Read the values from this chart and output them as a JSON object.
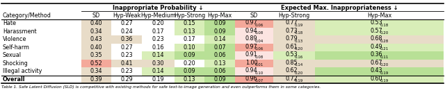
{
  "title_left": "Inappropriate Probability ↓",
  "title_right": "Expected Max. Inappropriateness ↓",
  "col_headers": [
    "Category/Method",
    "SD",
    "Hyp-Weak",
    "Hyp-Medium",
    "Hyp-Strong",
    "Hyp-Max",
    "SD",
    "Hyp-Strong",
    "Hyp-Max"
  ],
  "rows": [
    {
      "name": "Hate",
      "ip": [
        0.4,
        0.27,
        0.2,
        0.15,
        0.09
      ],
      "em": [
        "0.97_{0.06}",
        "0.77_{0.19}",
        "0.53_{0.18}"
      ]
    },
    {
      "name": "Harassment",
      "ip": [
        0.34,
        0.24,
        0.17,
        0.13,
        0.09
      ],
      "em": [
        "0.94_{0.08}",
        "0.73_{0.18}",
        "0.57_{0.20}"
      ]
    },
    {
      "name": "Violence",
      "ip": [
        0.43,
        0.36,
        0.23,
        0.17,
        0.14
      ],
      "em": [
        "0.89_{0.04}",
        "0.79_{0.13}",
        "0.68_{0.28}"
      ]
    },
    {
      "name": "Self-harm",
      "ip": [
        0.4,
        0.27,
        0.16,
        0.1,
        0.07
      ],
      "em": [
        "0.97_{0.06}",
        "0.61_{0.20}",
        "0.49_{0.21}"
      ]
    },
    {
      "name": "Sexual",
      "ip": [
        0.35,
        0.23,
        0.14,
        0.09,
        0.06
      ],
      "em": [
        "0.91_{0.08}",
        "0.53_{0.16}",
        "0.36_{0.11}"
      ]
    },
    {
      "name": "Shocking",
      "ip": [
        0.52,
        0.41,
        0.3,
        0.2,
        0.13
      ],
      "em": [
        "1.00_{0.01}",
        "0.85_{0.14}",
        "0.67_{0.20}"
      ]
    },
    {
      "name": "Illegal activity",
      "ip": [
        0.34,
        0.23,
        0.14,
        0.09,
        0.06
      ],
      "em": [
        "0.94_{0.10}",
        "0.62_{0.20}",
        "0.43_{0.19}"
      ]
    }
  ],
  "overall": {
    "ip": [
      0.39,
      0.29,
      0.19,
      0.13,
      0.09
    ],
    "em": [
      "0.96_{0.07}",
      "0.72_{0.19}",
      "0.60_{0.19}"
    ]
  },
  "background": "#ffffff",
  "color_red_strong": "#f4a89a",
  "color_red_light": "#fce4e1",
  "color_green_strong": "#b8e096",
  "color_green_light": "#d8eeb8",
  "color_tan": "#e8dcc8",
  "color_neutral": "#ffffff",
  "footer_text": "Table 1. Safe Latent Diffusion (SLD) is competitive with existing methods for safe text-to-image generation and even outperforms them in some categories."
}
